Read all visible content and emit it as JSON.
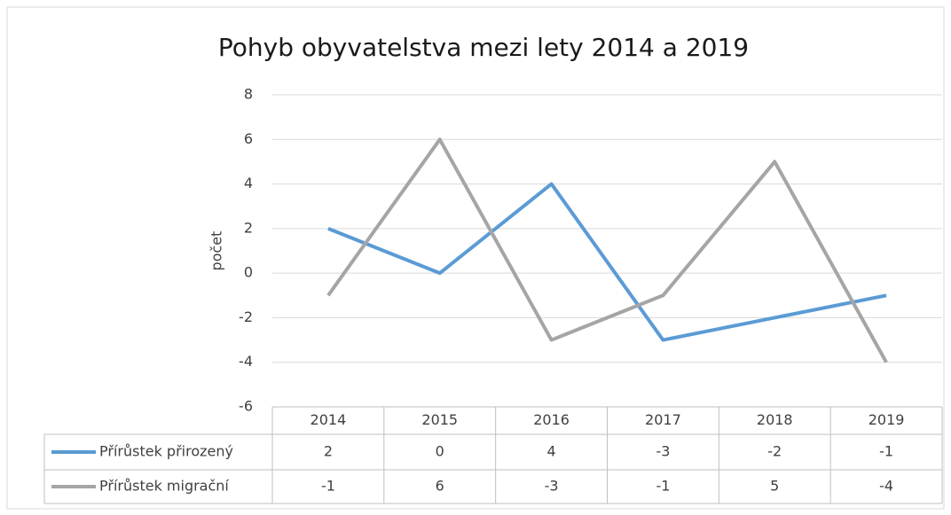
{
  "chart_data": {
    "type": "line",
    "title": "Pohyb obyvatelstva mezi lety 2014 a 2019",
    "y_label": "počet",
    "categories": [
      "2014",
      "2015",
      "2016",
      "2017",
      "2018",
      "2019"
    ],
    "series": [
      {
        "name": "Přírůstek přirozený",
        "color": "#5b9bd5",
        "values": [
          2,
          0,
          4,
          -3,
          -2,
          -1
        ]
      },
      {
        "name": "Přírůstek migrační",
        "color": "#a5a5a5",
        "values": [
          -1,
          6,
          -3,
          -1,
          5,
          -4
        ]
      }
    ],
    "ylim": [
      -6,
      8
    ],
    "yticks": [
      -6,
      -4,
      -2,
      0,
      2,
      4,
      6,
      8
    ],
    "grid": true,
    "data_table": true
  }
}
